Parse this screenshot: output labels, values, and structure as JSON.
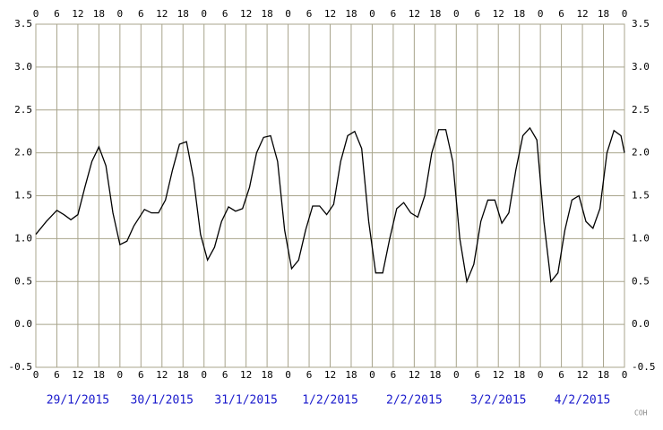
{
  "chart_data": {
    "type": "line",
    "xlim": [
      0,
      168
    ],
    "ylim": [
      -0.5,
      3.5
    ],
    "xticks": [
      0,
      {
        "value": 6,
        "label": "6"
      },
      {
        "value": 12,
        "label": "12"
      },
      {
        "value": 18,
        "label": "18"
      },
      {
        "value": 24,
        "label": "0"
      },
      {
        "value": 30,
        "label": "6"
      },
      {
        "value": 36,
        "label": "12"
      },
      {
        "value": 42,
        "label": "18"
      },
      {
        "value": 48,
        "label": "0"
      },
      {
        "value": 54,
        "label": "6"
      },
      {
        "value": 60,
        "label": "12"
      },
      {
        "value": 66,
        "label": "18"
      },
      {
        "value": 72,
        "label": "0"
      },
      {
        "value": 78,
        "label": "6"
      },
      {
        "value": 84,
        "label": "12"
      },
      {
        "value": 90,
        "label": "18"
      },
      {
        "value": 96,
        "label": "0"
      },
      {
        "value": 102,
        "label": "6"
      },
      {
        "value": 108,
        "label": "12"
      },
      {
        "value": 114,
        "label": "18"
      },
      {
        "value": 120,
        "label": "0"
      },
      {
        "value": 126,
        "label": "6"
      },
      {
        "value": 132,
        "label": "12"
      },
      {
        "value": 138,
        "label": "18"
      },
      {
        "value": 144,
        "label": "0"
      },
      {
        "value": 150,
        "label": "6"
      },
      {
        "value": 156,
        "label": "12"
      },
      {
        "value": 162,
        "label": "18"
      },
      {
        "value": 168,
        "label": "0"
      }
    ],
    "yticks": [
      -0.5,
      {
        "value": 0,
        "label": "0.0"
      },
      0.5,
      {
        "value": 1,
        "label": "1.0"
      },
      1.5,
      {
        "value": 2,
        "label": "2.0"
      },
      2.5,
      {
        "value": 3,
        "label": "3.0"
      },
      3.5
    ],
    "grid": true,
    "dates": [
      "29/1/2015",
      "30/1/2015",
      "31/1/2015",
      "1/2/2015",
      "2/2/2015",
      "3/2/2015",
      "4/2/2015"
    ],
    "credit": "COH",
    "series": [
      {
        "color": "#000000",
        "x": [
          0,
          3,
          6,
          8,
          10,
          12,
          14,
          16,
          18,
          20,
          22,
          24,
          26,
          28,
          31,
          33,
          35,
          37,
          39,
          41,
          43,
          45,
          47,
          49,
          51,
          53,
          55,
          57,
          59,
          61,
          63,
          65,
          67,
          69,
          71,
          73,
          75,
          77,
          79,
          81,
          83,
          85,
          87,
          89,
          91,
          93,
          95,
          97,
          99,
          101,
          103,
          105,
          107,
          109,
          111,
          113,
          115,
          117,
          119,
          121,
          123,
          125,
          127,
          129,
          131,
          133,
          135,
          137,
          139,
          141,
          143,
          145,
          147,
          149,
          151,
          153,
          155,
          157,
          159,
          161,
          163,
          165,
          167,
          168
        ],
        "values": [
          1.05,
          1.2,
          1.33,
          1.28,
          1.22,
          1.28,
          1.6,
          1.9,
          2.07,
          1.85,
          1.3,
          0.93,
          0.97,
          1.15,
          1.34,
          1.3,
          1.3,
          1.45,
          1.8,
          2.1,
          2.13,
          1.7,
          1.05,
          0.75,
          0.9,
          1.2,
          1.37,
          1.32,
          1.35,
          1.6,
          2.0,
          2.18,
          2.2,
          1.9,
          1.1,
          0.65,
          0.75,
          1.1,
          1.38,
          1.38,
          1.28,
          1.4,
          1.9,
          2.2,
          2.25,
          2.05,
          1.2,
          0.6,
          0.6,
          1.0,
          1.35,
          1.42,
          1.3,
          1.25,
          1.5,
          2.0,
          2.27,
          2.27,
          1.9,
          1.0,
          0.5,
          0.7,
          1.2,
          1.45,
          1.45,
          1.18,
          1.3,
          1.8,
          2.2,
          2.29,
          2.15,
          1.2,
          0.5,
          0.6,
          1.1,
          1.45,
          1.5,
          1.2,
          1.12,
          1.35,
          2.0,
          2.26,
          2.2,
          2.0
        ]
      }
    ]
  }
}
